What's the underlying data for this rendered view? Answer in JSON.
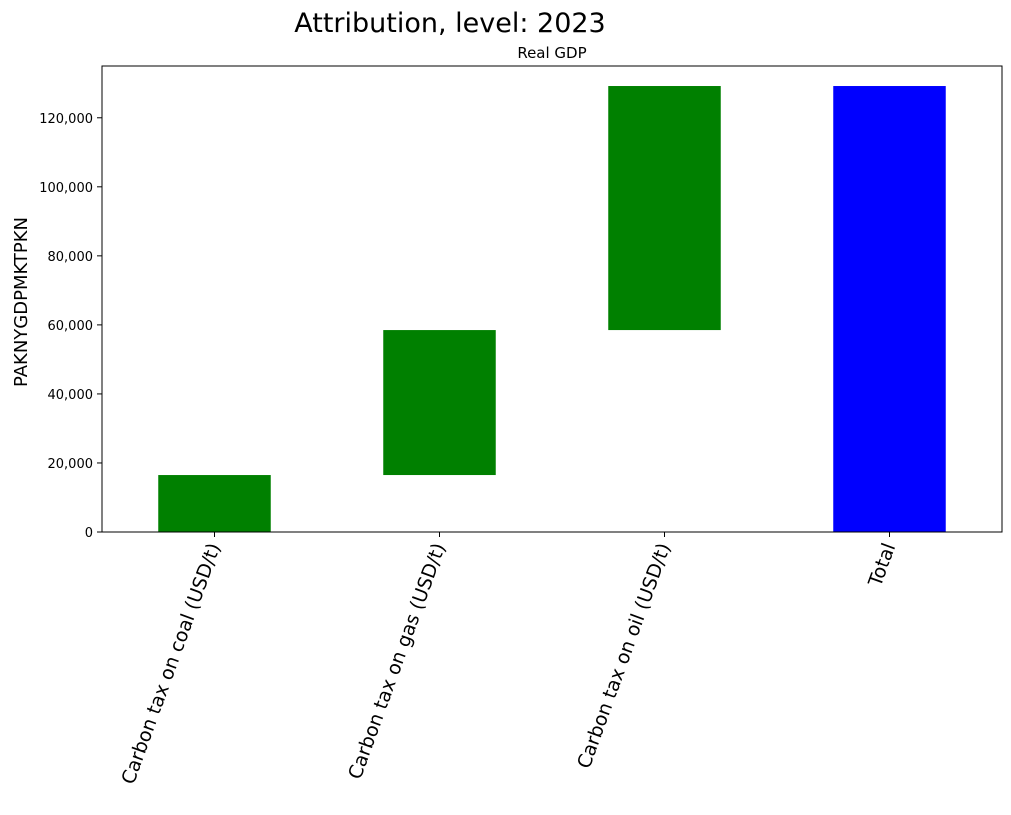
{
  "chart_data": {
    "type": "bar",
    "title": "Attribution, level: 2023",
    "subtitle": "Real GDP",
    "xlabel": "",
    "ylabel": "PAKNYGDPMKTPKN",
    "ylim": [
      0,
      135000
    ],
    "yticks": [
      0,
      20000,
      40000,
      60000,
      80000,
      100000,
      120000
    ],
    "ytick_labels": [
      "0",
      "20,000",
      "40,000",
      "60,000",
      "80,000",
      "100,000",
      "120,000"
    ],
    "categories": [
      "Carbon tax on coal (USD/t)",
      "Carbon tax on gas (USD/t)",
      "Carbon tax on oil (USD/t)",
      "Total"
    ],
    "bars": [
      {
        "category": "Carbon tax on coal (USD/t)",
        "bottom": 0,
        "top": 16500,
        "value": 16500,
        "color": "#008000"
      },
      {
        "category": "Carbon tax on gas (USD/t)",
        "bottom": 16500,
        "top": 58500,
        "value": 42000,
        "color": "#008000"
      },
      {
        "category": "Carbon tax on oil (USD/t)",
        "bottom": 58500,
        "top": 129200,
        "value": 70700,
        "color": "#008000"
      },
      {
        "category": "Total",
        "bottom": 0,
        "top": 129200,
        "value": 129200,
        "color": "#0000ff"
      }
    ],
    "grid": false,
    "legend": "none"
  }
}
